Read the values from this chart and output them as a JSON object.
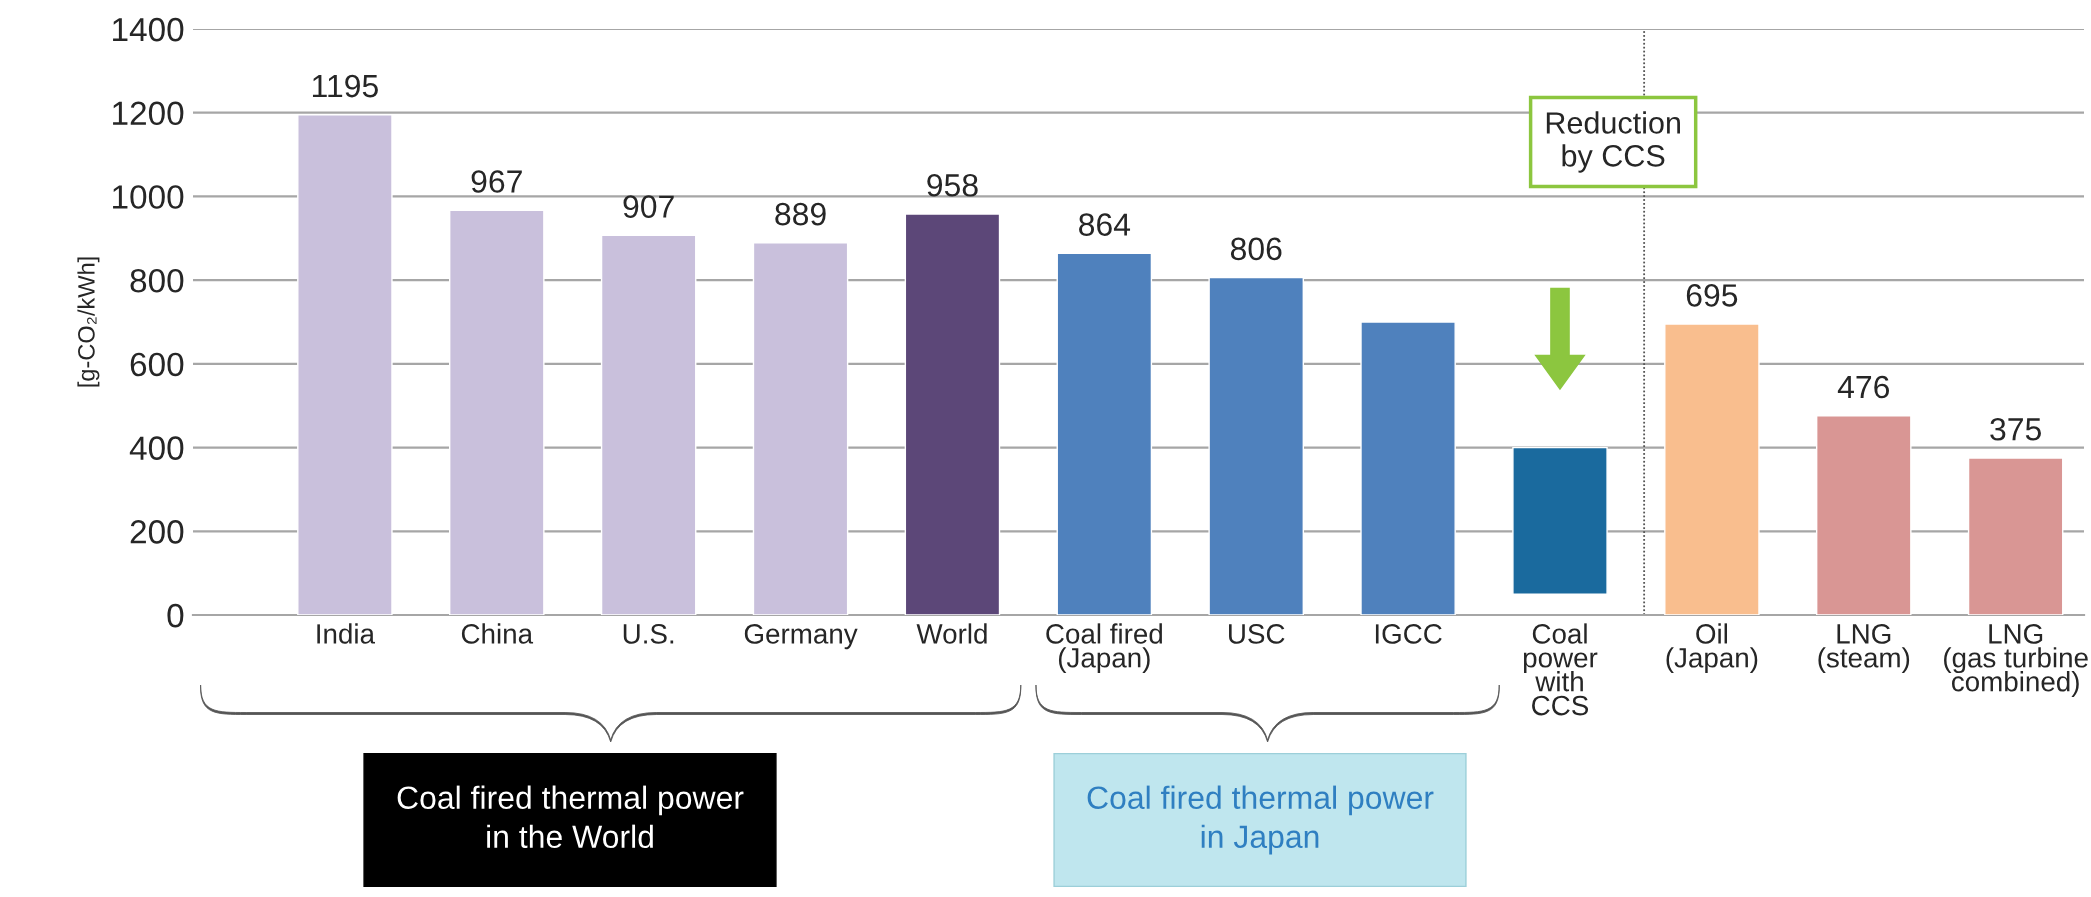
{
  "chart_data": {
    "type": "bar",
    "ylabel": "[g-CO₂/kWh]",
    "categories": [
      "India",
      "China",
      "U.S.",
      "Germany",
      "World",
      "Coal fired\n(Japan)",
      "USC",
      "IGCC",
      "Coal\npower\nwith\nCCS",
      "Oil\n(Japan)",
      "LNG\n(steam)",
      "LNG\n(gas turbine\ncombined)"
    ],
    "values": [
      1195,
      967,
      907,
      889,
      958,
      864,
      806,
      700,
      350,
      695,
      476,
      375
    ],
    "base": [
      0,
      0,
      0,
      0,
      0,
      0,
      0,
      0,
      50,
      0,
      0,
      0
    ],
    "colors": [
      "#c9c0dc",
      "#c9c0dc",
      "#c9c0dc",
      "#c9c0dc",
      "#5c4778",
      "#4f81bd",
      "#4f81bd",
      "#4f81bd",
      "#1a6a9e",
      "#f9be8e",
      "#d99694",
      "#d99694"
    ],
    "value_labels": [
      "1195",
      "967",
      "907",
      "889",
      "958",
      "864",
      "806",
      null,
      null,
      "695",
      "476",
      "375"
    ],
    "ylim": [
      0,
      1400
    ],
    "yticks": [
      0,
      200,
      400,
      600,
      800,
      1000,
      1200,
      1400
    ],
    "grid": "y",
    "annotations": [
      "Reduction\nby CCS",
      "Coal fired thermal power\nin the World",
      "Coal fired thermal power\nin Japan"
    ]
  }
}
